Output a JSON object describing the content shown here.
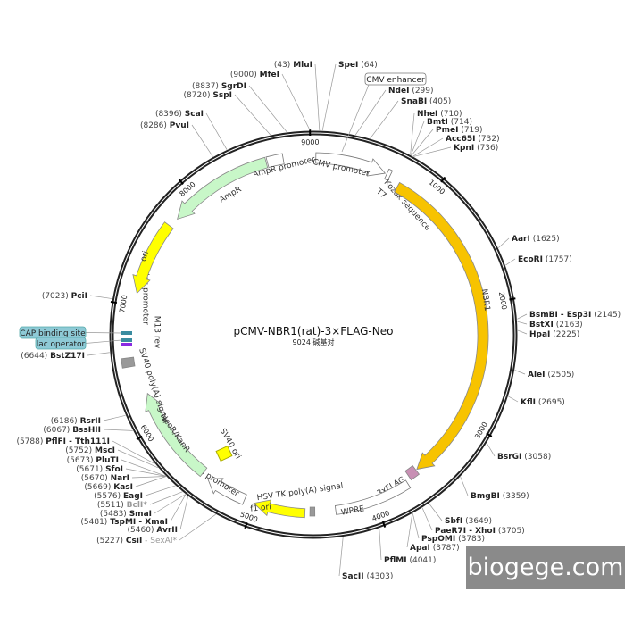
{
  "plasmid": {
    "name": "pCMV-NBR1(rat)-3×FLAG-Neo",
    "length_label": "9024 碱基对",
    "length_bp": 9024
  },
  "ticks": [
    "1000",
    "2000",
    "3000",
    "4000",
    "5000",
    "6000",
    "7000",
    "8000",
    "9000"
  ],
  "features": [
    {
      "name": "CMV promoter"
    },
    {
      "name": "T7"
    },
    {
      "name": "Kozak sequence"
    },
    {
      "name": "NBR1"
    },
    {
      "name": "3xFLAG"
    },
    {
      "name": "WPRE"
    },
    {
      "name": "HSV TK poly(A) signal"
    },
    {
      "name": "f1 ori"
    },
    {
      "name": "SV40 promoter"
    },
    {
      "name": "SV40 ori"
    },
    {
      "name": "NeoR/KanR"
    },
    {
      "name": "SV40 poly(A) signal"
    },
    {
      "name": "M13 rev"
    },
    {
      "name": "lac promoter"
    },
    {
      "name": "ori"
    },
    {
      "name": "AmpR"
    },
    {
      "name": "AmpR promoter"
    }
  ],
  "callouts": [
    {
      "name": "CMV enhancer"
    },
    {
      "name": "CAP binding site"
    },
    {
      "name": "lac operator"
    }
  ],
  "colors": {
    "orange": "#f7c300",
    "yellow": "#ffff00",
    "green": "#c8f7c8",
    "pink": "#c890b4",
    "callout": "#8ecad6"
  },
  "sites": [
    {
      "name": "MluI",
      "pos": "43"
    },
    {
      "name": "SpeI",
      "pos": "64"
    },
    {
      "name": "MfeI",
      "pos": "9000"
    },
    {
      "name": "SgrDI",
      "pos": "8837"
    },
    {
      "name": "SspI",
      "pos": "8720"
    },
    {
      "name": "ScaI",
      "pos": "8396"
    },
    {
      "name": "PvuI",
      "pos": "8286"
    },
    {
      "name": "NdeI",
      "pos": "299"
    },
    {
      "name": "SnaBI",
      "pos": "405"
    },
    {
      "name": "NheI",
      "pos": "710"
    },
    {
      "name": "BmtI",
      "pos": "714"
    },
    {
      "name": "PmeI",
      "pos": "719"
    },
    {
      "name": "Acc65I",
      "pos": "732"
    },
    {
      "name": "KpnI",
      "pos": "736"
    },
    {
      "name": "AarI",
      "pos": "1625"
    },
    {
      "name": "EcoRI",
      "pos": "1757"
    },
    {
      "name": "BsmBI - Esp3I",
      "pos": "2145"
    },
    {
      "name": "BstXI",
      "pos": "2163"
    },
    {
      "name": "HpaI",
      "pos": "2225"
    },
    {
      "name": "AleI",
      "pos": "2505"
    },
    {
      "name": "KflI",
      "pos": "2695"
    },
    {
      "name": "BsrGI",
      "pos": "3058"
    },
    {
      "name": "BmgBI",
      "pos": "3359"
    },
    {
      "name": "SbfI",
      "pos": "3649"
    },
    {
      "name": "PaeR7I - XhoI",
      "pos": "3705"
    },
    {
      "name": "PspOMI",
      "pos": "3783"
    },
    {
      "name": "ApaI",
      "pos": "3787"
    },
    {
      "name": "PflMI",
      "pos": "4041"
    },
    {
      "name": "SacII",
      "pos": "4303"
    },
    {
      "name": "PciI",
      "pos": "7023"
    },
    {
      "name": "BstZ17I",
      "pos": "6644"
    },
    {
      "name": "RsrII",
      "pos": "6186"
    },
    {
      "name": "BssHII",
      "pos": "6067"
    },
    {
      "name": "PflFI - Tth111I",
      "pos": "5788"
    },
    {
      "name": "MscI",
      "pos": "5752"
    },
    {
      "name": "PluTI",
      "pos": "5673"
    },
    {
      "name": "SfoI",
      "pos": "5671"
    },
    {
      "name": "NarI",
      "pos": "5670"
    },
    {
      "name": "KasI",
      "pos": "5669"
    },
    {
      "name": "EagI",
      "pos": "5576"
    },
    {
      "name": "BclI*",
      "pos": "5511",
      "dim": true
    },
    {
      "name": "SmaI",
      "pos": "5483"
    },
    {
      "name": "TspMI - XmaI",
      "pos": "5481"
    },
    {
      "name": "AvrII",
      "pos": "5460"
    },
    {
      "name": "CsiI",
      "pos": "5227",
      "extra": "SexAI*"
    }
  ],
  "watermark": "biogege.com"
}
